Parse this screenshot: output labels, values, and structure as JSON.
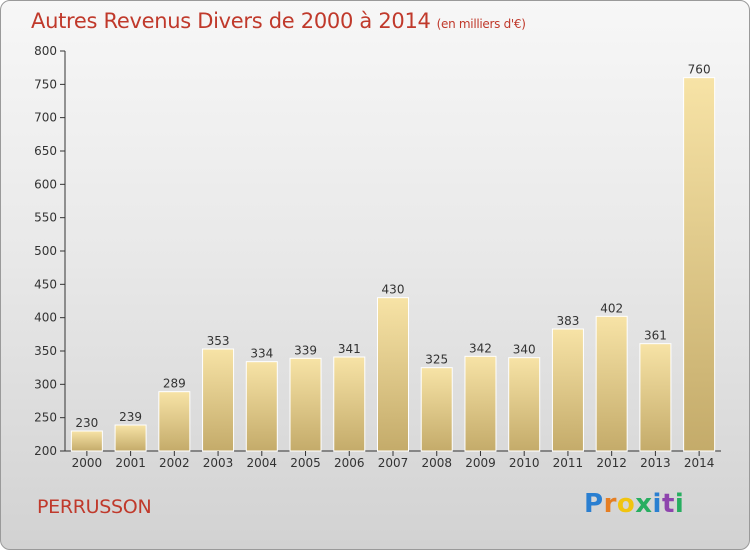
{
  "title": "Autres Revenus Divers de 2000 à 2014",
  "subtitle": "(en milliers d'€)",
  "commune": "PERRUSSON",
  "logo": {
    "text": "Proxiti",
    "letters": [
      "P",
      "r",
      "o",
      "x",
      "i",
      "t",
      "i"
    ],
    "colors": [
      "#2a7fd1",
      "#e67e22",
      "#f1c40f",
      "#27ae60",
      "#2a7fd1",
      "#8e44ad",
      "#27ae60"
    ]
  },
  "colors": {
    "title": "#c0392b",
    "bar_light": "#f6dfa0",
    "bar_dark": "#c5ad6d",
    "axis": "#333333",
    "grid_tick": "#333333"
  },
  "chart_data": {
    "type": "bar",
    "categories": [
      "2000",
      "2001",
      "2002",
      "2003",
      "2004",
      "2005",
      "2006",
      "2007",
      "2008",
      "2009",
      "2010",
      "2011",
      "2012",
      "2013",
      "2014"
    ],
    "values": [
      230,
      239,
      289,
      353,
      334,
      339,
      341,
      430,
      325,
      342,
      340,
      383,
      402,
      361,
      760
    ],
    "ylim": [
      200,
      800
    ],
    "yticks": [
      200,
      250,
      300,
      350,
      400,
      450,
      500,
      550,
      600,
      650,
      700,
      750,
      800
    ],
    "data_labels": true,
    "grid": false
  }
}
